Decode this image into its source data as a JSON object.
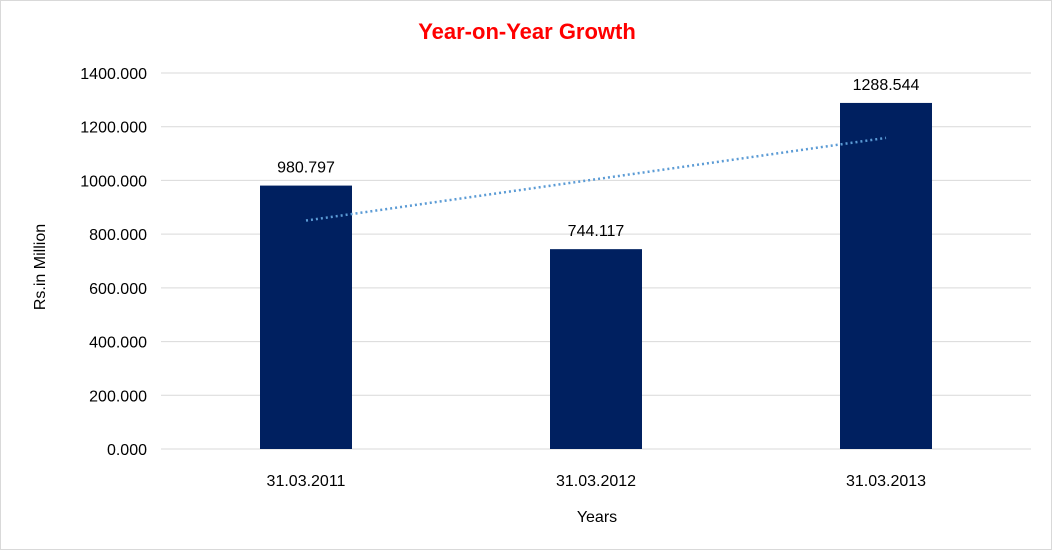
{
  "chart_data": {
    "type": "bar",
    "title": "Year-on-Year Growth",
    "xlabel": "Years",
    "ylabel": "Rs.in Million",
    "categories": [
      "31.03.2011",
      "31.03.2012",
      "31.03.2013"
    ],
    "values": [
      980.797,
      744.117,
      1288.544
    ],
    "data_labels": [
      "980.797",
      "744.117",
      "1288.544"
    ],
    "ylim": [
      0,
      1400
    ],
    "y_ticks": [
      "0.000",
      "200.000",
      "400.000",
      "600.000",
      "800.000",
      "1000.000",
      "1200.000",
      "1400.000"
    ],
    "grid": true,
    "trendline": {
      "type": "linear",
      "style": "dotted"
    },
    "colors": {
      "bar": "#002060",
      "title": "#ff0000",
      "trendline": "#5b9bd5",
      "grid": "#d9d9d9"
    }
  }
}
